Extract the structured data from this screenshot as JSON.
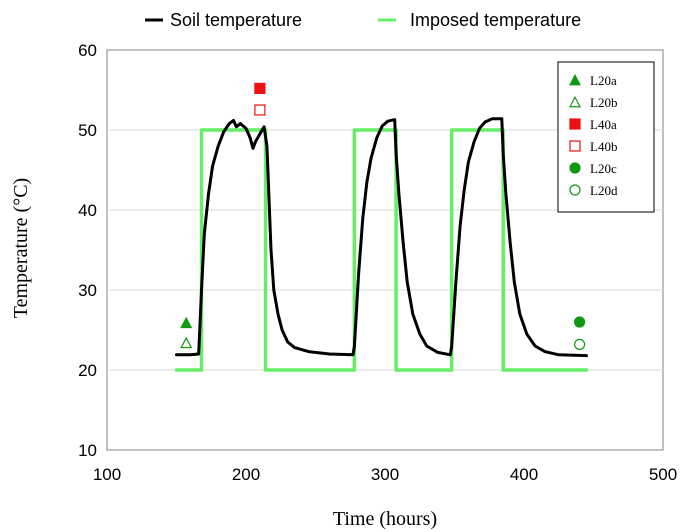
{
  "chart_data": {
    "type": "line",
    "xlabel": "Time (hours)",
    "ylabel": "Temperature (°C)",
    "xlim": [
      100,
      500
    ],
    "ylim": [
      10,
      60
    ],
    "xticks": [
      100,
      200,
      300,
      400,
      500
    ],
    "yticks": [
      10,
      20,
      30,
      40,
      50,
      60
    ],
    "grid": "horizontal",
    "legend_placement": "top",
    "series": [
      {
        "name": "Soil temperature",
        "kind": "line",
        "color": "#000000",
        "points": [
          [
            150,
            21.9
          ],
          [
            160,
            21.9
          ],
          [
            166,
            22.0
          ],
          [
            168,
            30
          ],
          [
            170,
            37
          ],
          [
            173,
            42
          ],
          [
            176,
            45.5
          ],
          [
            180,
            48
          ],
          [
            184,
            49.8
          ],
          [
            188,
            50.8
          ],
          [
            191,
            51.2
          ],
          [
            193,
            50.4
          ],
          [
            196,
            50.8
          ],
          [
            200,
            50.2
          ],
          [
            203,
            49
          ],
          [
            205,
            47.7
          ],
          [
            207,
            48.6
          ],
          [
            210,
            49.5
          ],
          [
            213,
            50.4
          ],
          [
            215,
            48
          ],
          [
            216,
            44
          ],
          [
            218,
            35
          ],
          [
            220,
            30
          ],
          [
            223,
            27
          ],
          [
            226,
            25
          ],
          [
            230,
            23.5
          ],
          [
            235,
            22.8
          ],
          [
            245,
            22.3
          ],
          [
            260,
            22.0
          ],
          [
            277,
            21.9
          ],
          [
            278,
            23
          ],
          [
            281,
            32
          ],
          [
            284,
            39
          ],
          [
            287,
            43.5
          ],
          [
            290,
            46.5
          ],
          [
            294,
            49
          ],
          [
            298,
            50.5
          ],
          [
            302,
            51.1
          ],
          [
            307,
            51.3
          ],
          [
            308,
            47
          ],
          [
            310,
            42
          ],
          [
            313,
            36
          ],
          [
            316,
            31
          ],
          [
            320,
            27
          ],
          [
            325,
            24.5
          ],
          [
            330,
            23
          ],
          [
            338,
            22.2
          ],
          [
            347,
            21.9
          ],
          [
            348,
            23
          ],
          [
            351,
            31
          ],
          [
            354,
            38
          ],
          [
            357,
            42.5
          ],
          [
            360,
            46
          ],
          [
            364,
            48.5
          ],
          [
            368,
            50.2
          ],
          [
            372,
            51
          ],
          [
            377,
            51.4
          ],
          [
            384,
            51.4
          ],
          [
            385,
            47
          ],
          [
            387,
            42
          ],
          [
            390,
            36
          ],
          [
            393,
            31
          ],
          [
            397,
            27
          ],
          [
            402,
            24.5
          ],
          [
            408,
            23
          ],
          [
            415,
            22.3
          ],
          [
            425,
            21.9
          ],
          [
            445,
            21.8
          ]
        ]
      },
      {
        "name": "Imposed temperature",
        "kind": "line",
        "color": "#66ee66",
        "points": [
          [
            150,
            20
          ],
          [
            168,
            20
          ],
          [
            168,
            50
          ],
          [
            214,
            50
          ],
          [
            214,
            20
          ],
          [
            278,
            20
          ],
          [
            278,
            50
          ],
          [
            308,
            50
          ],
          [
            308,
            20
          ],
          [
            348,
            20
          ],
          [
            348,
            50
          ],
          [
            385,
            50
          ],
          [
            385,
            20
          ],
          [
            445,
            20
          ]
        ]
      },
      {
        "name": "L20a",
        "kind": "marker",
        "marker": "triangle-filled",
        "color": "#119911",
        "points": [
          [
            157,
            25.9
          ]
        ]
      },
      {
        "name": "L20b",
        "kind": "marker",
        "marker": "triangle-open",
        "color": "#119911",
        "points": [
          [
            157,
            23.4
          ]
        ]
      },
      {
        "name": "L40a",
        "kind": "marker",
        "marker": "square-filled",
        "color": "#ee1111",
        "points": [
          [
            210,
            55.2
          ]
        ]
      },
      {
        "name": "L40b",
        "kind": "marker",
        "marker": "square-open",
        "color": "#ee1111",
        "points": [
          [
            210,
            52.5
          ]
        ]
      },
      {
        "name": "L20c",
        "kind": "marker",
        "marker": "circle-filled",
        "color": "#119911",
        "points": [
          [
            440,
            26
          ]
        ]
      },
      {
        "name": "L20d",
        "kind": "marker",
        "marker": "circle-open",
        "color": "#119911",
        "points": [
          [
            440,
            23.2
          ]
        ]
      }
    ]
  }
}
